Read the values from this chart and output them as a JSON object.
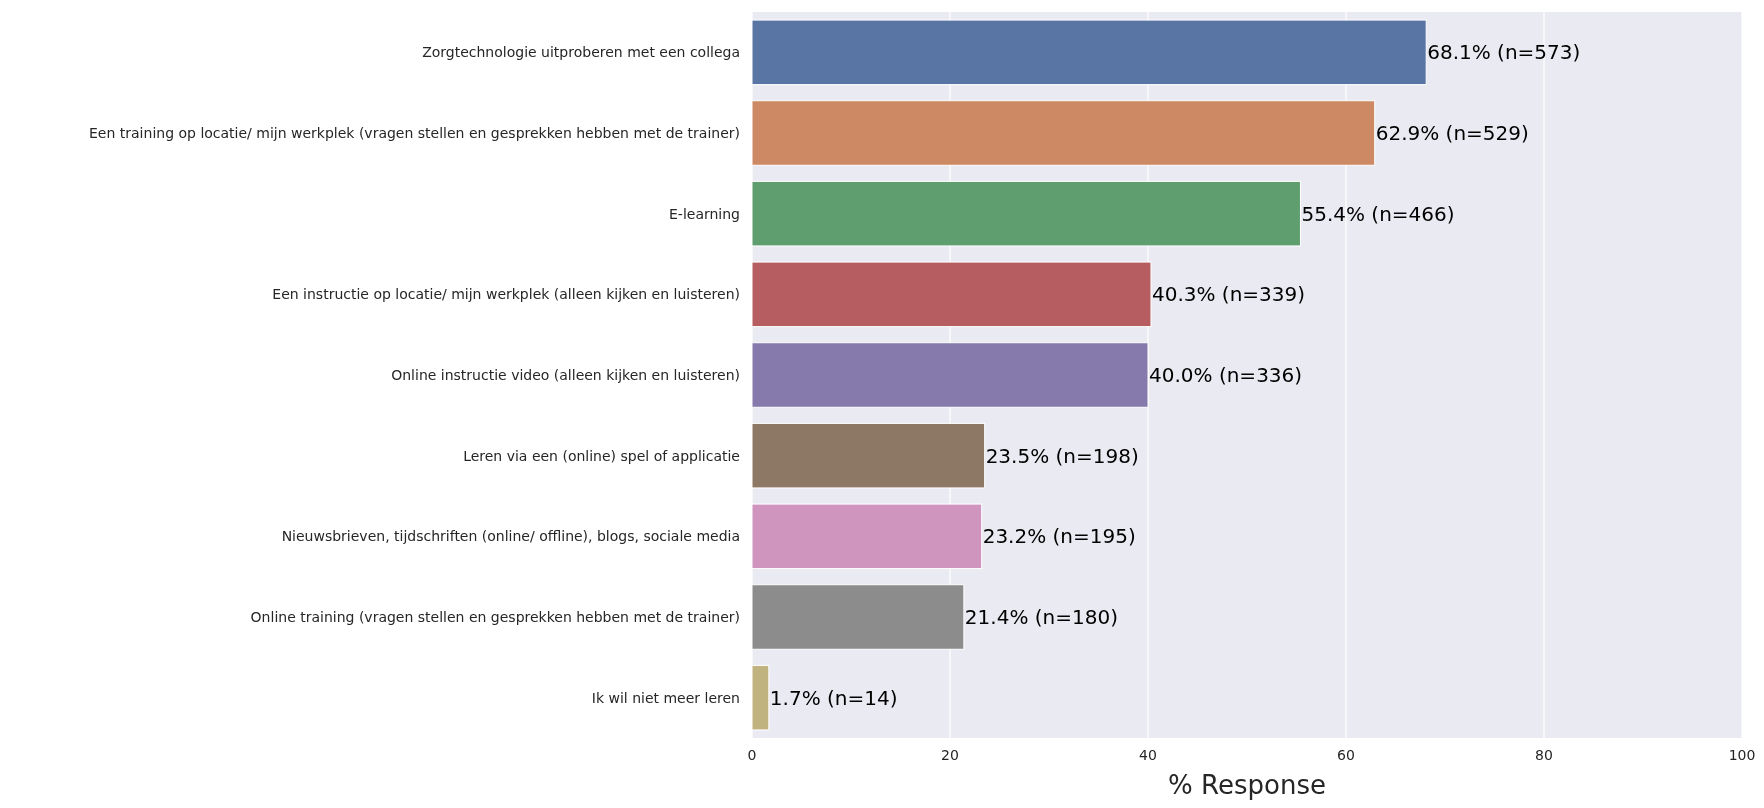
{
  "chart_data": {
    "type": "bar",
    "orientation": "horizontal",
    "xlabel": "% Response",
    "categories": [
      "Zorgtechnologie uitproberen met een collega",
      "Een training op locatie/ mijn werkplek (vragen stellen en gesprekken hebben met de trainer)",
      "E-learning",
      "Een instructie op locatie/ mijn werkplek (alleen kijken en luisteren)",
      "Online instructie video (alleen kijken en luisteren)",
      "Leren via een (online) spel of applicatie",
      "Nieuwsbrieven, tijdschriften (online/ offline), blogs, sociale media",
      "Online training (vragen stellen en gesprekken hebben met de trainer)",
      "Ik wil niet meer leren"
    ],
    "values": [
      68.1,
      62.9,
      55.4,
      40.3,
      40.0,
      23.5,
      23.2,
      21.4,
      1.7
    ],
    "value_labels": [
      "68.1% (n=573)",
      "62.9% (n=529)",
      "55.4% (n=466)",
      "40.3% (n=339)",
      "40.0% (n=336)",
      "23.5% (n=198)",
      "23.2% (n=195)",
      "21.4% (n=180)",
      "1.7% (n=14)"
    ],
    "colors": [
      "#5875a4",
      "#cc8963",
      "#5f9e6e",
      "#b55d60",
      "#857aab",
      "#8d7866",
      "#d095bf",
      "#8c8c8c",
      "#c1b37f"
    ],
    "xlim": [
      0,
      100
    ],
    "xticks": [
      0,
      20,
      40,
      60,
      80,
      100
    ],
    "grid": "x"
  }
}
